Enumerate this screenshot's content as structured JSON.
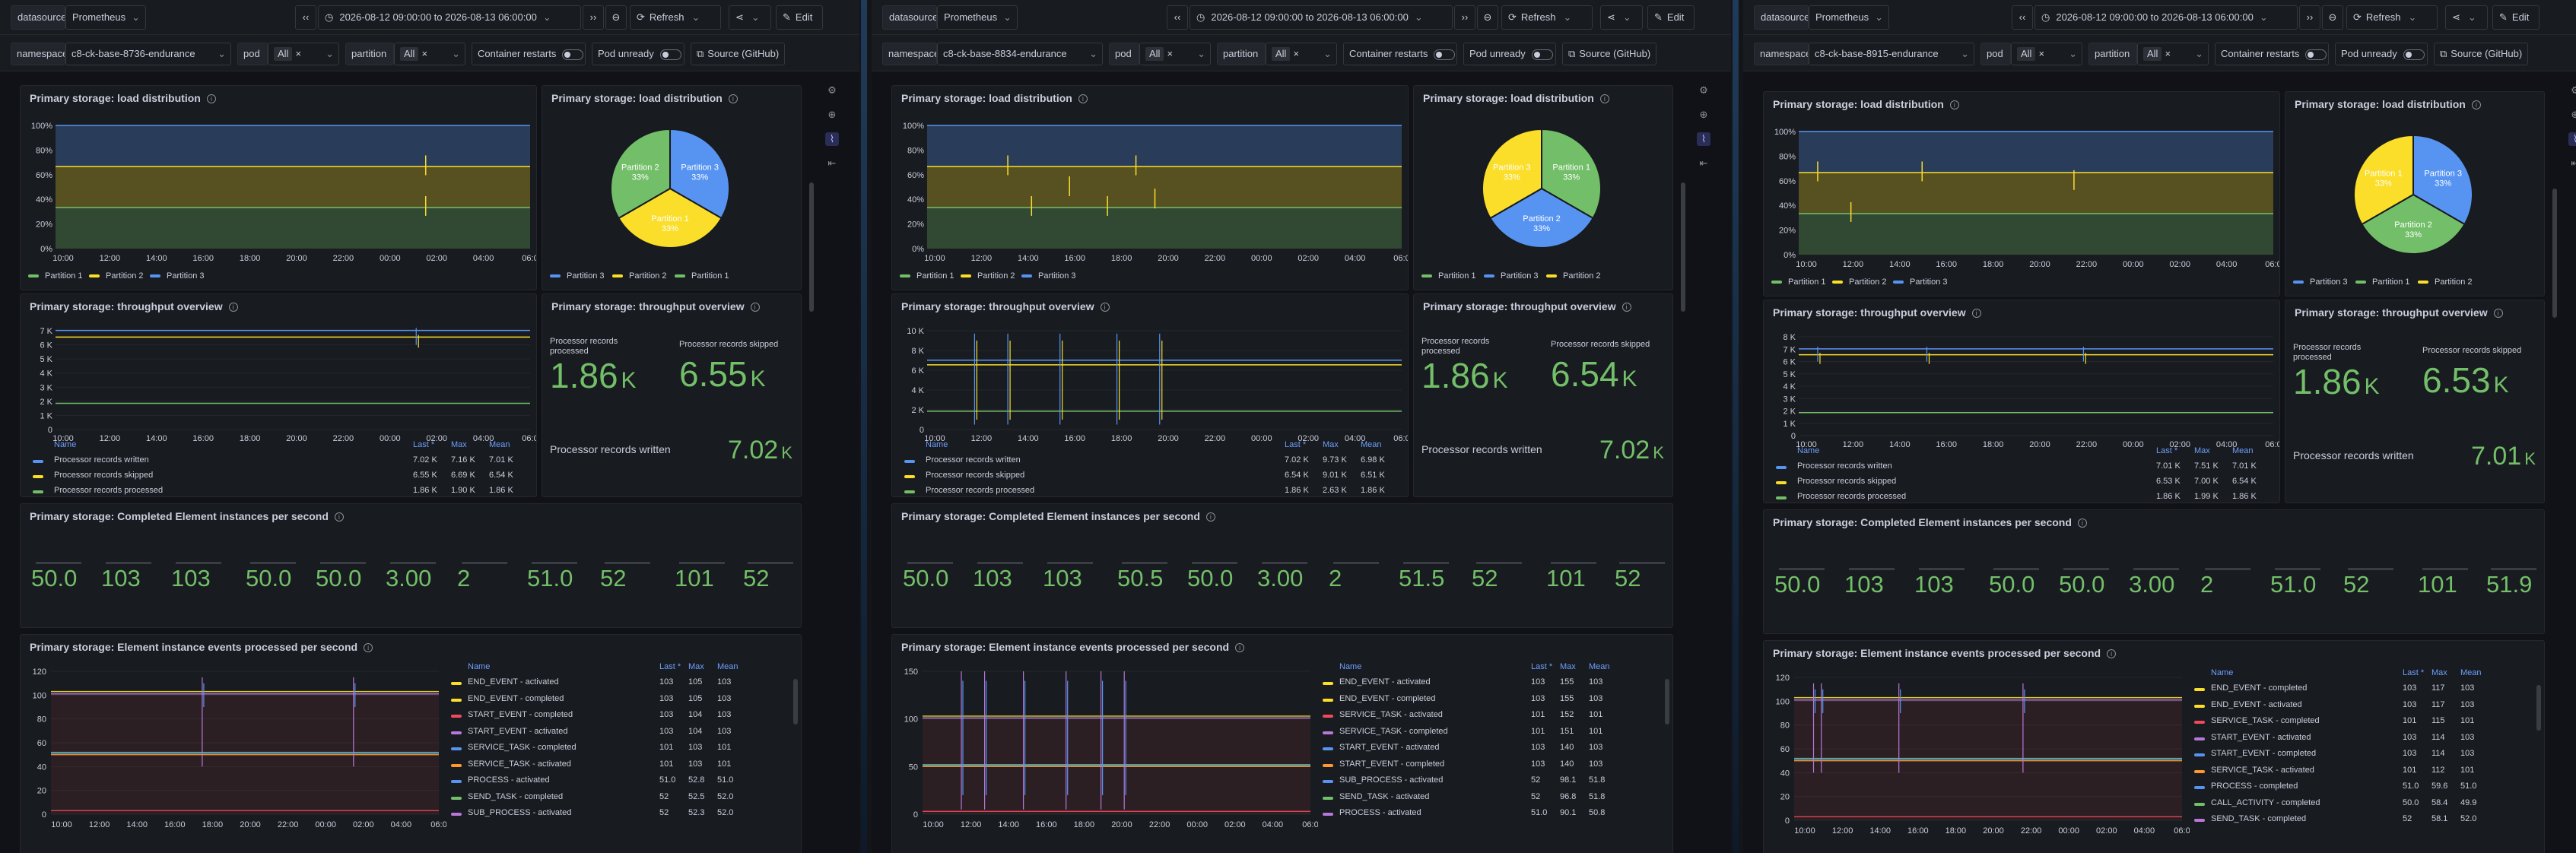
{
  "common": {
    "datasource_label": "datasource",
    "datasource_value": "Prometheus",
    "time_range": "2026-08-12 09:00:00 to 2026-08-13 06:00:00",
    "refresh": "Refresh",
    "edit": "Edit",
    "namespace_label": "namespace",
    "pod_label": "pod",
    "pod_value": "All",
    "partition_label": "partition",
    "partition_value": "All",
    "container_restarts": "Container restarts",
    "pod_unready": "Pod unready",
    "source": "Source (GitHub)",
    "icons": [
      "back-icon",
      "clock-icon",
      "forward-icon",
      "zoom-out-icon",
      "refresh-icon",
      "share-icon",
      "pencil-icon",
      "close-icon",
      "chevron-down-icon",
      "info-icon"
    ],
    "colors": {
      "green": "#73bf69",
      "yellow": "#fade2a",
      "blue": "#5794f2",
      "red": "#f2495c",
      "purple": "#b877d9",
      "orange": "#ff9830",
      "bg": "#111217",
      "panel": "#181b1f"
    }
  },
  "panes": [
    {
      "namespace": "c8-ck-base-8736-endurance",
      "load_title": "Primary storage: load distribution",
      "load_y": [
        "100%",
        "80%",
        "60%",
        "40%",
        "20%",
        "0%"
      ],
      "load_x": [
        "10:00",
        "12:00",
        "14:00",
        "16:00",
        "18:00",
        "20:00",
        "22:00",
        "00:00",
        "02:00",
        "04:00",
        "06:0"
      ],
      "load_legend": [
        "Partition 1",
        "Partition 2",
        "Partition 3"
      ],
      "pie_title": "Primary storage: load distribution",
      "pie_labels": [
        "Partition 3 33%",
        "Partition 1 33%",
        "Partition 2 33%"
      ],
      "pie_legend": [
        "Partition 3",
        "Partition 2",
        "Partition 1"
      ],
      "thr_title": "Primary storage: throughput overview",
      "thr_y": [
        "7 K",
        "6 K",
        "5 K",
        "4 K",
        "3 K",
        "2 K",
        "1 K",
        "0"
      ],
      "thr_x": [
        "10:00",
        "12:00",
        "14:00",
        "16:00",
        "18:00",
        "20:00",
        "22:00",
        "00:00",
        "02:00",
        "04:00",
        "06:0"
      ],
      "thr_cols": [
        "Name",
        "Last *",
        "Max",
        "Mean"
      ],
      "thr_rows": [
        [
          "Processor records written",
          "7.02 K",
          "7.16 K",
          "7.01 K"
        ],
        [
          "Processor records skipped",
          "6.55 K",
          "6.69 K",
          "6.54 K"
        ],
        [
          "Processor records processed",
          "1.86 K",
          "1.90 K",
          "1.86 K"
        ]
      ],
      "stat_title": "Primary storage: throughput overview",
      "stat_processed_lbl": "Processor records processed",
      "stat_processed": "1.86",
      "stat_processed_unit": "K",
      "stat_skipped_lbl": "Processor records skipped",
      "stat_skipped": "6.55",
      "stat_skipped_unit": "K",
      "stat_written_lbl": "Processor records written",
      "stat_written": "7.02",
      "stat_written_unit": "K",
      "completed_title": "Primary storage: Completed Element instances per second",
      "completed_vals": [
        "50.0",
        "103",
        "103",
        "50.0",
        "50.0",
        "3.00",
        "2",
        "51.0",
        "52",
        "101",
        "52"
      ],
      "events_title": "Primary storage: Element instance events processed per second",
      "events_y": [
        "120",
        "100",
        "80",
        "60",
        "40",
        "20",
        "0"
      ],
      "events_x": [
        "10:00",
        "12:00",
        "14:00",
        "16:00",
        "18:00",
        "20:00",
        "22:00",
        "00:00",
        "02:00",
        "04:00",
        "06:0"
      ],
      "events_cols": [
        "Name",
        "Last *",
        "Max",
        "Mean"
      ],
      "events_rows": [
        [
          "END_EVENT - activated",
          "103",
          "105",
          "103"
        ],
        [
          "END_EVENT - completed",
          "103",
          "105",
          "103"
        ],
        [
          "START_EVENT - completed",
          "103",
          "104",
          "103"
        ],
        [
          "START_EVENT - activated",
          "103",
          "104",
          "103"
        ],
        [
          "SERVICE_TASK - completed",
          "101",
          "103",
          "101"
        ],
        [
          "SERVICE_TASK - activated",
          "101",
          "103",
          "101"
        ],
        [
          "PROCESS - activated",
          "51.0",
          "52.8",
          "51.0"
        ],
        [
          "SEND_TASK - completed",
          "52",
          "52.5",
          "52.0"
        ],
        [
          "SUB_PROCESS - activated",
          "52",
          "52.3",
          "52.0"
        ]
      ]
    },
    {
      "namespace": "c8-ck-base-8834-endurance",
      "load_title": "Primary storage: load distribution",
      "load_y": [
        "100%",
        "80%",
        "60%",
        "40%",
        "20%",
        "0%"
      ],
      "load_x": [
        "10:00",
        "12:00",
        "14:00",
        "16:00",
        "18:00",
        "20:00",
        "22:00",
        "00:00",
        "02:00",
        "04:00",
        "06:0"
      ],
      "load_legend": [
        "Partition 1",
        "Partition 2",
        "Partition 3"
      ],
      "pie_title": "Primary storage: load distribution",
      "pie_labels": [
        "Partition 1 33%",
        "Partition 2 33%",
        "Partition 3 33%"
      ],
      "pie_legend": [
        "Partition 1",
        "Partition 3",
        "Partition 2"
      ],
      "thr_title": "Primary storage: throughput overview",
      "thr_y": [
        "10 K",
        "8 K",
        "6 K",
        "4 K",
        "2 K",
        "0"
      ],
      "thr_x": [
        "10:00",
        "12:00",
        "14:00",
        "16:00",
        "18:00",
        "20:00",
        "22:00",
        "00:00",
        "02:00",
        "04:00",
        "06:0"
      ],
      "thr_cols": [
        "Name",
        "Last *",
        "Max",
        "Mean"
      ],
      "thr_rows": [
        [
          "Processor records written",
          "7.02 K",
          "9.73 K",
          "6.98 K"
        ],
        [
          "Processor records skipped",
          "6.54 K",
          "9.01 K",
          "6.51 K"
        ],
        [
          "Processor records processed",
          "1.86 K",
          "2.63 K",
          "1.86 K"
        ]
      ],
      "stat_title": "Primary storage: throughput overview",
      "stat_processed_lbl": "Processor records processed",
      "stat_processed": "1.86",
      "stat_processed_unit": "K",
      "stat_skipped_lbl": "Processor records skipped",
      "stat_skipped": "6.54",
      "stat_skipped_unit": "K",
      "stat_written_lbl": "Processor records written",
      "stat_written": "7.02",
      "stat_written_unit": "K",
      "completed_title": "Primary storage: Completed Element instances per second",
      "completed_vals": [
        "50.0",
        "103",
        "103",
        "50.5",
        "50.0",
        "3.00",
        "2",
        "51.5",
        "52",
        "101",
        "52"
      ],
      "events_title": "Primary storage: Element instance events processed per second",
      "events_y": [
        "150",
        "100",
        "50",
        "0"
      ],
      "events_x": [
        "10:00",
        "12:00",
        "14:00",
        "16:00",
        "18:00",
        "20:00",
        "22:00",
        "00:00",
        "02:00",
        "04:00",
        "06:0"
      ],
      "events_cols": [
        "Name",
        "Last *",
        "Max",
        "Mean"
      ],
      "events_rows": [
        [
          "END_EVENT - activated",
          "103",
          "155",
          "103"
        ],
        [
          "END_EVENT - completed",
          "103",
          "155",
          "103"
        ],
        [
          "SERVICE_TASK - activated",
          "101",
          "152",
          "101"
        ],
        [
          "SERVICE_TASK - completed",
          "101",
          "151",
          "101"
        ],
        [
          "START_EVENT - activated",
          "103",
          "140",
          "103"
        ],
        [
          "START_EVENT - completed",
          "103",
          "140",
          "103"
        ],
        [
          "SUB_PROCESS - activated",
          "52",
          "98.1",
          "51.8"
        ],
        [
          "SEND_TASK - activated",
          "52",
          "96.8",
          "51.8"
        ],
        [
          "PROCESS - activated",
          "51.0",
          "90.1",
          "50.8"
        ]
      ]
    },
    {
      "namespace": "c8-ck-base-8915-endurance",
      "load_title": "Primary storage: load distribution",
      "load_y": [
        "100%",
        "80%",
        "60%",
        "40%",
        "20%",
        "0%"
      ],
      "load_x": [
        "10:00",
        "12:00",
        "14:00",
        "16:00",
        "18:00",
        "20:00",
        "22:00",
        "00:00",
        "02:00",
        "04:00",
        "06:0"
      ],
      "load_legend": [
        "Partition 1",
        "Partition 2",
        "Partition 3"
      ],
      "pie_title": "Primary storage: load distribution",
      "pie_labels": [
        "Partition 3 33%",
        "Partition 2 33%",
        "Partition 1 33%"
      ],
      "pie_legend": [
        "Partition 3",
        "Partition 1",
        "Partition 2"
      ],
      "thr_title": "Primary storage: throughput overview",
      "thr_y": [
        "8 K",
        "7 K",
        "6 K",
        "5 K",
        "4 K",
        "3 K",
        "2 K",
        "1 K",
        "0"
      ],
      "thr_x": [
        "10:00",
        "12:00",
        "14:00",
        "16:00",
        "18:00",
        "20:00",
        "22:00",
        "00:00",
        "02:00",
        "04:00",
        "06:0"
      ],
      "thr_cols": [
        "Name",
        "Last *",
        "Max",
        "Mean"
      ],
      "thr_rows": [
        [
          "Processor records written",
          "7.01 K",
          "7.51 K",
          "7.01 K"
        ],
        [
          "Processor records skipped",
          "6.53 K",
          "7.00 K",
          "6.54 K"
        ],
        [
          "Processor records processed",
          "1.86 K",
          "1.99 K",
          "1.86 K"
        ]
      ],
      "stat_title": "Primary storage: throughput overview",
      "stat_processed_lbl": "Processor records processed",
      "stat_processed": "1.86",
      "stat_processed_unit": "K",
      "stat_skipped_lbl": "Processor records skipped",
      "stat_skipped": "6.53",
      "stat_skipped_unit": "K",
      "stat_written_lbl": "Processor records written",
      "stat_written": "7.01",
      "stat_written_unit": "K",
      "completed_title": "Primary storage: Completed Element instances per second",
      "completed_vals": [
        "50.0",
        "103",
        "103",
        "50.0",
        "50.0",
        "3.00",
        "2",
        "51.0",
        "52",
        "101",
        "51.9"
      ],
      "events_title": "Primary storage: Element instance events processed per second",
      "events_y": [
        "120",
        "100",
        "80",
        "60",
        "40",
        "20",
        "0"
      ],
      "events_x": [
        "10:00",
        "12:00",
        "14:00",
        "16:00",
        "18:00",
        "20:00",
        "22:00",
        "00:00",
        "02:00",
        "04:00",
        "06:0"
      ],
      "events_cols": [
        "Name",
        "Last *",
        "Max",
        "Mean"
      ],
      "events_rows": [
        [
          "END_EVENT - completed",
          "103",
          "117",
          "103"
        ],
        [
          "END_EVENT - activated",
          "103",
          "117",
          "103"
        ],
        [
          "SERVICE_TASK - completed",
          "101",
          "115",
          "101"
        ],
        [
          "START_EVENT - activated",
          "103",
          "114",
          "103"
        ],
        [
          "START_EVENT - completed",
          "103",
          "114",
          "103"
        ],
        [
          "SERVICE_TASK - activated",
          "101",
          "112",
          "101"
        ],
        [
          "PROCESS - completed",
          "51.0",
          "59.6",
          "51.0"
        ],
        [
          "CALL_ACTIVITY - completed",
          "50.0",
          "58.4",
          "49.9"
        ],
        [
          "SEND_TASK - completed",
          "52",
          "58.1",
          "52.0"
        ]
      ]
    }
  ]
}
